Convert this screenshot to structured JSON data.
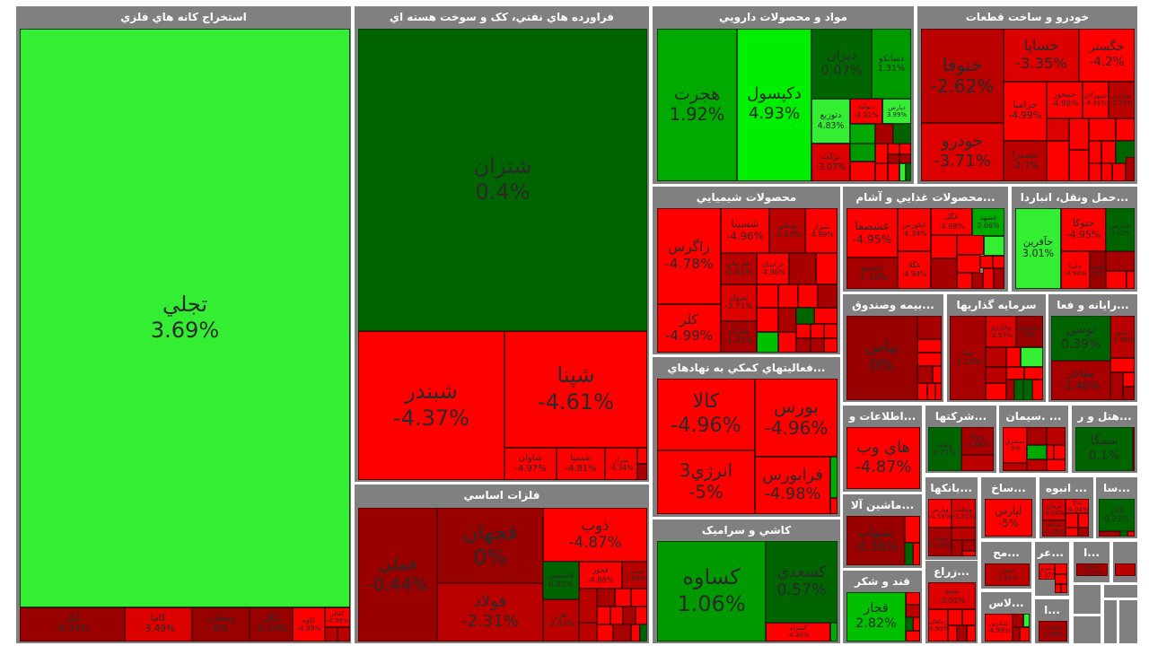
{
  "colors": {
    "header_bg": "#808080",
    "header_text": "#ffffff",
    "strong_green": "#33ee33",
    "green": "#009900",
    "dark_green": "#006400",
    "dark_red": "#990000",
    "red": "#ff0000"
  },
  "sectors": [
    {
      "title": "استخراج کانه هاي فلزي",
      "tiles": [
        {
          "symbol": "تجلي",
          "change": "3.69%"
        },
        {
          "symbol": "آپال",
          "change": "-0.34%"
        },
        {
          "symbol": "کاما",
          "change": "-3.49%"
        },
        {
          "symbol": "ومعادن",
          "change": "0%"
        },
        {
          "symbol": "کگل",
          "change": "-0.14%"
        },
        {
          "symbol": "کاوه",
          "change": "-4.99%"
        },
        {
          "symbol": "کمالر",
          "change": "-4.98%"
        }
      ]
    },
    {
      "title": "فراورده هاي نفتي، کک و سوخت هسته اي",
      "tiles": [
        {
          "symbol": "شتران",
          "change": "0.4%"
        },
        {
          "symbol": "شبندر",
          "change": "-4.37%"
        },
        {
          "symbol": "شپنا",
          "change": "-4.61%"
        },
        {
          "symbol": "شاوان",
          "change": "-4.97%"
        },
        {
          "symbol": "شسپا",
          "change": "-4.81%"
        },
        {
          "symbol": "شراز",
          "change": "-4.34%"
        }
      ]
    },
    {
      "title": "فلزات اساسي",
      "tiles": [
        {
          "symbol": "فملي",
          "change": "-0.44%"
        },
        {
          "symbol": "فجهان",
          "change": "0%"
        },
        {
          "symbol": "فولاد",
          "change": "-2.31%"
        },
        {
          "symbol": "ذوب",
          "change": "-4.87%"
        },
        {
          "symbol": "فاسمين",
          "change": "0.83%"
        },
        {
          "symbol": "فخوز",
          "change": "-4.88%"
        },
        {
          "symbol": "فسرب",
          "change": "-2.84%"
        },
        {
          "symbol": "فزر",
          "change": "-2.02%"
        }
      ]
    },
    {
      "title": "مواد و محصولات دارويي",
      "tiles": [
        {
          "symbol": "هجرت",
          "change": "1.92%"
        },
        {
          "symbol": "دکپسول",
          "change": "4.93%"
        },
        {
          "symbol": "ديران",
          "change": "0.07%"
        },
        {
          "symbol": "دسانکو",
          "change": "1.31%"
        },
        {
          "symbol": "دتوزيع",
          "change": "4.83%"
        },
        {
          "symbol": "دتوليه",
          "change": "-4.92%"
        },
        {
          "symbol": "دپارس",
          "change": "3.99%"
        },
        {
          "symbol": "برکت",
          "change": "-3.07%"
        }
      ]
    },
    {
      "title": "خودرو و ساخت قطعات",
      "tiles": [
        {
          "symbol": "خنوفا",
          "change": "-2.62%"
        },
        {
          "symbol": "خودرو",
          "change": "-3.71%"
        },
        {
          "symbol": "خساپا",
          "change": "-3.35%"
        },
        {
          "symbol": "خگستر",
          "change": "-4.2%"
        },
        {
          "symbol": "خزاميا",
          "change": "-4.99%"
        },
        {
          "symbol": "خمحور",
          "change": "-4.98%"
        },
        {
          "symbol": "خمهرگان",
          "change": "-4.91%"
        },
        {
          "symbol": "خپارس",
          "change": "-2.72%"
        },
        {
          "symbol": "خصدرا",
          "change": "-2.7%"
        }
      ]
    },
    {
      "title": "محصولات شيميايي",
      "tiles": [
        {
          "symbol": "زاگرس",
          "change": "-4.78%"
        },
        {
          "symbol": "کلر",
          "change": "-4.99%"
        },
        {
          "symbol": "شسينا",
          "change": "-4.96%"
        },
        {
          "symbol": "بوعلي",
          "change": "-2.63%"
        },
        {
          "symbol": "شيراز",
          "change": "-4.99%"
        },
        {
          "symbol": "جم پيلن",
          "change": "-2.62%"
        },
        {
          "symbol": "خراسان",
          "change": "-4.96%"
        },
        {
          "symbol": "پترول",
          "change": "-3.71%"
        },
        {
          "symbol": "شاراک",
          "change": "-1.52%"
        }
      ]
    },
    {
      "title": "...محصولات غذايي و آشام",
      "tiles": [
        {
          "symbol": "غشصفا",
          "change": "-4.95%"
        },
        {
          "symbol": "غصينو",
          "change": "-1.19%"
        },
        {
          "symbol": "غکورس",
          "change": "-4.34%"
        },
        {
          "symbol": "غگلا",
          "change": "-4.94%"
        },
        {
          "symbol": "غگل",
          "change": "-4.98%"
        },
        {
          "symbol": "غشهد",
          "change": "2.06%"
        }
      ]
    },
    {
      "title": "...حمل ونقل، انباردا",
      "tiles": [
        {
          "symbol": "حآفرين",
          "change": "3.01%"
        },
        {
          "symbol": "حتوکا",
          "change": "-4.95%"
        },
        {
          "symbol": "حفارس",
          "change": "0.72%"
        },
        {
          "symbol": "حاسا",
          "change": "-4.94%"
        },
        {
          "symbol": "حسير",
          "change": "0%"
        }
      ]
    },
    {
      "title": "...بيمه وصندوق",
      "tiles": [
        {
          "symbol": "بپاس",
          "change": "0%"
        }
      ]
    },
    {
      "title": "سرمايه گذاريها",
      "tiles": [
        {
          "symbol": "صبا",
          "change": "-1.16%"
        },
        {
          "symbol": "وخارزم",
          "change": "-3.57%"
        },
        {
          "symbol": "وصندوق",
          "change": "0%"
        }
      ]
    },
    {
      "title": "...رايانه و فعا",
      "tiles": [
        {
          "symbol": "توسن",
          "change": "0.39%"
        },
        {
          "symbol": "مفاخر",
          "change": "-1.46%"
        },
        {
          "symbol": "رانفور",
          "change": "-2.06%"
        }
      ]
    },
    {
      "title": "...اطلاعات و",
      "tiles": [
        {
          "symbol": "هاي وب",
          "change": "-4.87%"
        }
      ]
    },
    {
      "title": "...ماشين آلا",
      "tiles": [
        {
          "symbol": "بشهاب",
          "change": "-0.36%"
        }
      ]
    },
    {
      "title": "قند و شکر",
      "tiles": [
        {
          "symbol": "قجار",
          "change": "2.82%"
        }
      ]
    },
    {
      "title": "...شرکتها",
      "tiles": [
        {
          "symbol": "واميد",
          "change": "0.71%"
        },
        {
          "symbol": "وتوکا",
          "change": "-1.84%"
        }
      ]
    },
    {
      "title": "... .سيمان",
      "tiles": [
        {
          "symbol": "سشرق",
          "change": "-5%"
        }
      ]
    },
    {
      "title": "...هتل و ر",
      "tiles": [
        {
          "symbol": "سمگا",
          "change": "0.1%"
        }
      ]
    },
    {
      "title": "...بانکها",
      "tiles": [
        {
          "symbol": "وپارس",
          "change": "-4.59%"
        },
        {
          "symbol": "وبملت",
          "change": "-3.21%"
        },
        {
          "symbol": "وصادر",
          "change": "-1.02%"
        }
      ]
    },
    {
      "title": "...ساخ",
      "tiles": [
        {
          "symbol": "لپارس",
          "change": "-5%"
        }
      ]
    },
    {
      "title": "... انبوه",
      "tiles": [
        {
          "symbol": "ثرمان",
          "change": "-3.04%"
        },
        {
          "symbol": "ثباغ",
          "change": "-4.04%"
        },
        {
          "symbol": "ثشاهد",
          "change": "-2.26%"
        }
      ]
    },
    {
      "title": "...سا",
      "tiles": [
        {
          "symbol": "قاذر",
          "change": "0.23%"
        }
      ]
    },
    {
      "title": "...مح",
      "tiles": [
        {
          "symbol": "جمجر",
          "change": "-2.81%"
        }
      ]
    },
    {
      "title": "...عر",
      "tiles": [
        {
          "symbol": "بنيرو",
          "change": "-4.37%"
        }
      ]
    },
    {
      "title": "...ا",
      "tiles": [
        {
          "symbol": "حصفها",
          "change": "-1.01%"
        }
      ]
    },
    {
      "title": "...لاس",
      "tiles": [
        {
          "symbol": "شکربن",
          "change": "-4.99%"
        }
      ]
    },
    {
      "title": "...ا",
      "tiles": [
        {
          "symbol": "کماسه",
          "change": "-1.98%"
        }
      ]
    },
    {
      "title": "...فعاليتهاي کمکي به نهادهاي",
      "tiles": [
        {
          "symbol": "کالا",
          "change": "-4.96%"
        },
        {
          "symbol": "بورس",
          "change": "-4.96%"
        },
        {
          "symbol": "انرژي3",
          "change": "-5%"
        },
        {
          "symbol": "فرابورس",
          "change": "-4.98%"
        }
      ]
    },
    {
      "title": "کاشي و سراميک",
      "tiles": [
        {
          "symbol": "کساوه",
          "change": "1.06%"
        },
        {
          "symbol": "کسعدي",
          "change": "0.57%"
        },
        {
          "symbol": "کسرام",
          "change": "-4.34%"
        }
      ]
    },
    {
      "title": "...زراع",
      "tiles": [
        {
          "symbol": "سپيد",
          "change": "-3.01%"
        },
        {
          "symbol": "زماهان",
          "change": "-4.95%"
        }
      ]
    }
  ]
}
